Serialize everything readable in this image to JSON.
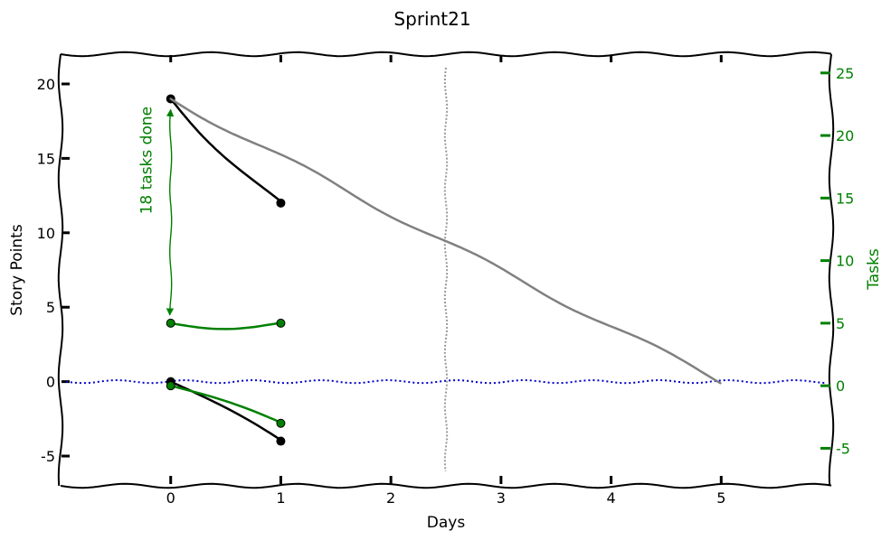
{
  "chart_data": {
    "type": "line",
    "title": "Sprint21",
    "xlabel": "Days",
    "ylabel": "Story Points",
    "y2label": "Tasks",
    "xlim": [
      -1,
      6
    ],
    "ylim": [
      -7,
      22
    ],
    "y2lim": [
      -8.0,
      26.5
    ],
    "x_ticks": [
      0,
      1,
      2,
      3,
      4,
      5
    ],
    "y_ticks": [
      -5,
      0,
      5,
      10,
      15,
      20
    ],
    "y2_ticks": [
      -5,
      0,
      5,
      10,
      15,
      20,
      25
    ],
    "grid": false,
    "legend": "none",
    "colors": {
      "points": "#000000",
      "tasks": "#008000",
      "ideal": "#808080",
      "zero": "#0000cc",
      "today": "#999999"
    },
    "series": [
      {
        "axis": "left",
        "color": "points",
        "markers": true,
        "x": [
          0,
          1
        ],
        "y": [
          19,
          12
        ]
      },
      {
        "axis": "left",
        "color": "points",
        "markers": true,
        "x": [
          0,
          1
        ],
        "y": [
          0,
          -4
        ]
      },
      {
        "axis": "right",
        "color": "tasks",
        "markers": true,
        "x": [
          0,
          1
        ],
        "y": [
          5,
          5
        ]
      },
      {
        "axis": "right",
        "color": "tasks",
        "markers": true,
        "x": [
          0,
          1
        ],
        "y": [
          0,
          -3
        ]
      },
      {
        "axis": "left",
        "color": "ideal",
        "markers": false,
        "x": [
          0,
          5
        ],
        "y": [
          19,
          0
        ]
      }
    ],
    "zero_line": {
      "y": 0
    },
    "today_line": {
      "x": 2.5
    },
    "annotations": [
      {
        "text": "18 tasks done",
        "x": 0,
        "from_y": 19,
        "to_y": 5
      }
    ]
  }
}
